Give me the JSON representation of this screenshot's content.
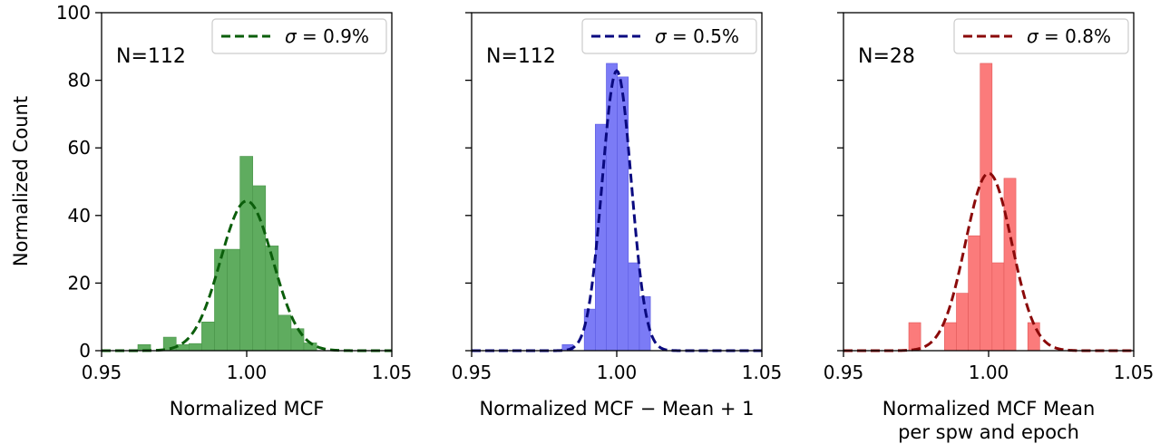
{
  "figure": {
    "ylabel": "Normalized Count"
  },
  "chart_data": [
    {
      "type": "bar",
      "panel": "left",
      "xlabel": "Normalized MCF",
      "xlabel_lines": [
        "Normalized MCF"
      ],
      "ylabel": "Normalized Count",
      "xlim": [
        0.95,
        1.05
      ],
      "ylim": [
        0,
        100
      ],
      "xticks": [
        "0.95",
        "1.00",
        "1.05"
      ],
      "yticks": [
        "0",
        "20",
        "40",
        "60",
        "80",
        "100"
      ],
      "annotation": "N=112",
      "bar_color": "#5fac5f",
      "bar_edge": "#4a944a",
      "bins": [
        {
          "x0": 0.9625,
          "x1": 0.9669,
          "value": 1.8
        },
        {
          "x0": 0.9713,
          "x1": 0.9757,
          "value": 4.0
        },
        {
          "x0": 0.9757,
          "x1": 0.9801,
          "value": 1.8
        },
        {
          "x0": 0.9801,
          "x1": 0.9845,
          "value": 2.1
        },
        {
          "x0": 0.9845,
          "x1": 0.9889,
          "value": 8.5
        },
        {
          "x0": 0.9889,
          "x1": 0.9933,
          "value": 30.0
        },
        {
          "x0": 0.9933,
          "x1": 0.9977,
          "value": 30.0
        },
        {
          "x0": 0.9977,
          "x1": 1.0021,
          "value": 57.5
        },
        {
          "x0": 1.0021,
          "x1": 1.0065,
          "value": 48.8
        },
        {
          "x0": 1.0065,
          "x1": 1.0109,
          "value": 31.0
        },
        {
          "x0": 1.0109,
          "x1": 1.0153,
          "value": 10.5
        },
        {
          "x0": 1.0153,
          "x1": 1.0197,
          "value": 6.5
        },
        {
          "x0": 1.0197,
          "x1": 1.0241,
          "value": 2.3
        }
      ],
      "fit": {
        "mu": 1.0,
        "sigma": 0.009,
        "peak": 44.3,
        "color": "#0b5e0b"
      },
      "legend": {
        "label": "= 0.9%",
        "symbol": "σ",
        "position": "upper right"
      }
    },
    {
      "type": "bar",
      "panel": "middle",
      "xlabel": "Normalized MCF − Mean + 1",
      "xlabel_lines": [
        "Normalized MCF − Mean + 1"
      ],
      "xlim": [
        0.95,
        1.05
      ],
      "ylim": [
        0,
        100
      ],
      "xticks": [
        "0.95",
        "1.00",
        "1.05"
      ],
      "annotation": "N=112",
      "bar_color": "#7b7bf6",
      "bar_edge": "#5a5ae0",
      "bins": [
        {
          "x0": 0.9812,
          "x1": 0.985,
          "value": 1.8
        },
        {
          "x0": 0.9888,
          "x1": 0.9926,
          "value": 12.3
        },
        {
          "x0": 0.9926,
          "x1": 0.9964,
          "value": 67.0
        },
        {
          "x0": 0.9964,
          "x1": 1.0002,
          "value": 85.0
        },
        {
          "x0": 1.0002,
          "x1": 1.004,
          "value": 81.0
        },
        {
          "x0": 1.004,
          "x1": 1.0078,
          "value": 26.0
        },
        {
          "x0": 1.0078,
          "x1": 1.0116,
          "value": 16.0
        }
      ],
      "fit": {
        "mu": 1.0,
        "sigma": 0.005,
        "peak": 82.8,
        "color": "#0a0a80"
      },
      "legend": {
        "label": "= 0.5%",
        "symbol": "σ",
        "position": "upper right"
      }
    },
    {
      "type": "bar",
      "panel": "right",
      "xlabel": "Normalized MCF Mean per spw and epoch",
      "xlabel_lines": [
        "Normalized MCF Mean",
        "per spw and epoch"
      ],
      "xlim": [
        0.95,
        1.05
      ],
      "ylim": [
        0,
        100
      ],
      "xticks": [
        "0.95",
        "1.00",
        "1.05"
      ],
      "annotation": "N=28",
      "bar_color": "#fb7b7b",
      "bar_edge": "#e25a5a",
      "bins": [
        {
          "x0": 0.9725,
          "x1": 0.9766,
          "value": 8.3
        },
        {
          "x0": 0.9848,
          "x1": 0.9889,
          "value": 8.3
        },
        {
          "x0": 0.9889,
          "x1": 0.993,
          "value": 17.0
        },
        {
          "x0": 0.993,
          "x1": 0.9971,
          "value": 34.0
        },
        {
          "x0": 0.9971,
          "x1": 1.0012,
          "value": 85.0
        },
        {
          "x0": 1.0012,
          "x1": 1.0053,
          "value": 26.0
        },
        {
          "x0": 1.0053,
          "x1": 1.0094,
          "value": 51.0
        },
        {
          "x0": 1.0135,
          "x1": 1.0176,
          "value": 8.3
        }
      ],
      "fit": {
        "mu": 1.0,
        "sigma": 0.008,
        "peak": 52.5,
        "color": "#8b0a0a"
      },
      "legend": {
        "label": "= 0.8%",
        "symbol": "σ",
        "position": "upper right"
      }
    }
  ]
}
